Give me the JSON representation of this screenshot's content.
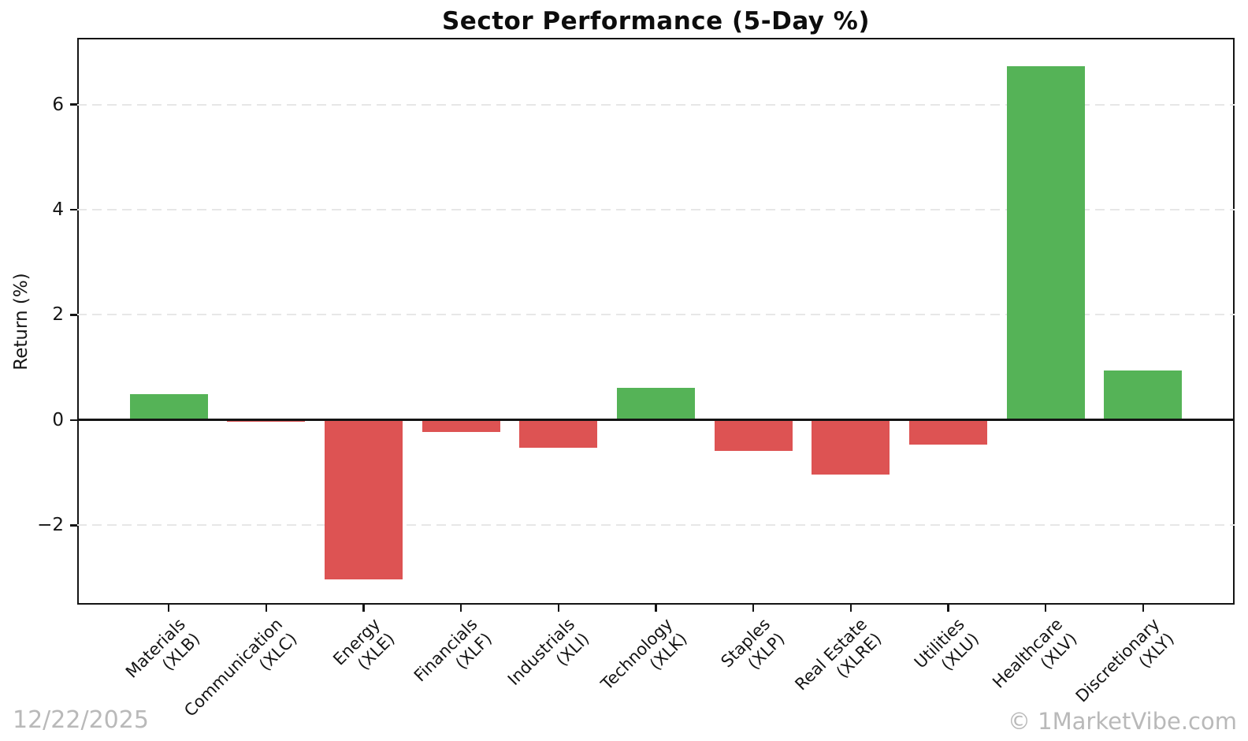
{
  "footer": {
    "date": "12/22/2025",
    "watermark": "© 1MarketVibe.com"
  },
  "chart_data": {
    "type": "bar",
    "title": "Sector Performance (5-Day %)",
    "xlabel": "",
    "ylabel": "Return (%)",
    "categories": [
      "Materials",
      "Communication",
      "Energy",
      "Financials",
      "Industrials",
      "Technology",
      "Staples",
      "Real Estate",
      "Utilities",
      "Healthcare",
      "Discretionary"
    ],
    "tickers": [
      "(XLB)",
      "(XLC)",
      "(XLE)",
      "(XLF)",
      "(XLI)",
      "(XLK)",
      "(XLP)",
      "(XLRE)",
      "(XLU)",
      "(XLV)",
      "(XLY)"
    ],
    "values": [
      0.5,
      -0.03,
      -3.03,
      -0.22,
      -0.53,
      0.62,
      -0.59,
      -1.04,
      -0.46,
      6.73,
      0.95
    ],
    "ylim": [
      -3.51,
      7.27
    ],
    "yticks": [
      -2,
      0,
      2,
      4,
      6
    ],
    "grid": "horizontal-dashed",
    "legend": "none",
    "bar_width_fraction": 0.8,
    "zero_line": true,
    "colors": {
      "positive": "#55b357",
      "negative": "#dd5353",
      "grid": "#e7e7e7",
      "axis": "#141414",
      "muted_text": "#b9b9b9"
    }
  }
}
